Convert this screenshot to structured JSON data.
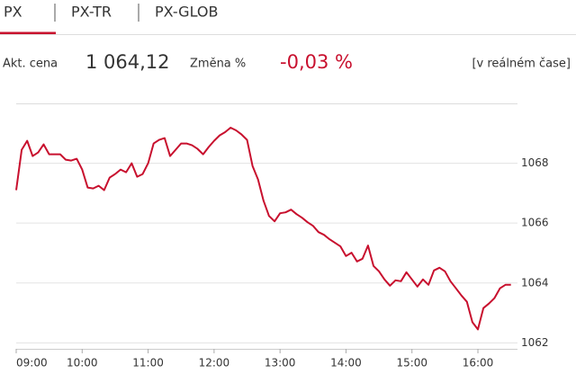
{
  "tabs": [
    "PX",
    "PX-TR",
    "PX-GLOB"
  ],
  "quote": {
    "price_label": "Akt. cena",
    "price": "1 064,12",
    "change_label": "Změna %",
    "change": "-0,03 %",
    "note": "[v reálném čase]"
  },
  "chart_data": {
    "type": "line",
    "color": "#c8102e",
    "grid": true,
    "x": [
      "09:00",
      "09:05",
      "09:10",
      "09:15",
      "09:20",
      "09:25",
      "09:30",
      "09:35",
      "09:40",
      "09:45",
      "09:50",
      "09:55",
      "10:00",
      "10:05",
      "10:10",
      "10:15",
      "10:20",
      "10:25",
      "10:30",
      "10:35",
      "10:40",
      "10:45",
      "10:50",
      "10:55",
      "11:00",
      "11:05",
      "11:10",
      "11:15",
      "11:20",
      "11:25",
      "11:30",
      "11:35",
      "11:40",
      "11:45",
      "11:50",
      "11:55",
      "12:00",
      "12:05",
      "12:10",
      "12:15",
      "12:20",
      "12:25",
      "12:30",
      "12:35",
      "12:40",
      "12:45",
      "12:50",
      "12:55",
      "13:00",
      "13:05",
      "13:10",
      "13:15",
      "13:20",
      "13:25",
      "13:30",
      "13:35",
      "13:40",
      "13:45",
      "13:50",
      "13:55",
      "14:00",
      "14:05",
      "14:10",
      "14:15",
      "14:20",
      "14:25",
      "14:30",
      "14:35",
      "14:40",
      "14:45",
      "14:50",
      "14:55",
      "15:00",
      "15:05",
      "15:10",
      "15:15",
      "15:20",
      "15:25",
      "15:30",
      "15:35",
      "15:40",
      "15:45",
      "15:50",
      "15:55",
      "16:00",
      "16:05",
      "16:10",
      "16:15",
      "16:20",
      "16:25",
      "16:30"
    ],
    "values": [
      1067.1,
      1068.45,
      1068.75,
      1068.24,
      1068.36,
      1068.63,
      1068.3,
      1068.3,
      1068.3,
      1068.12,
      1068.09,
      1068.15,
      1067.79,
      1067.19,
      1067.16,
      1067.25,
      1067.1,
      1067.52,
      1067.64,
      1067.79,
      1067.7,
      1068.0,
      1067.55,
      1067.64,
      1068.0,
      1068.66,
      1068.78,
      1068.84,
      1068.24,
      1068.45,
      1068.66,
      1068.66,
      1068.6,
      1068.48,
      1068.3,
      1068.54,
      1068.75,
      1068.93,
      1069.04,
      1069.19,
      1069.1,
      1068.96,
      1068.78,
      1067.91,
      1067.46,
      1066.75,
      1066.24,
      1066.06,
      1066.33,
      1066.36,
      1066.45,
      1066.3,
      1066.18,
      1066.03,
      1065.91,
      1065.7,
      1065.61,
      1065.46,
      1065.34,
      1065.22,
      1064.9,
      1065.01,
      1064.72,
      1064.81,
      1065.25,
      1064.57,
      1064.39,
      1064.12,
      1063.91,
      1064.09,
      1064.06,
      1064.36,
      1064.12,
      1063.88,
      1064.12,
      1063.94,
      1064.42,
      1064.51,
      1064.39,
      1064.06,
      1063.82,
      1063.58,
      1063.37,
      1062.69,
      1062.45,
      1063.16,
      1063.31,
      1063.49,
      1063.82,
      1063.94,
      1063.94
    ],
    "xlim": [
      "09:00",
      "16:36"
    ],
    "xticks": [
      "09:00",
      "10:00",
      "11:00",
      "12:00",
      "13:00",
      "14:00",
      "15:00",
      "16:00"
    ],
    "ylim": [
      1061.8,
      1070
    ],
    "yticks": [
      1062,
      1064,
      1066,
      1068
    ]
  }
}
